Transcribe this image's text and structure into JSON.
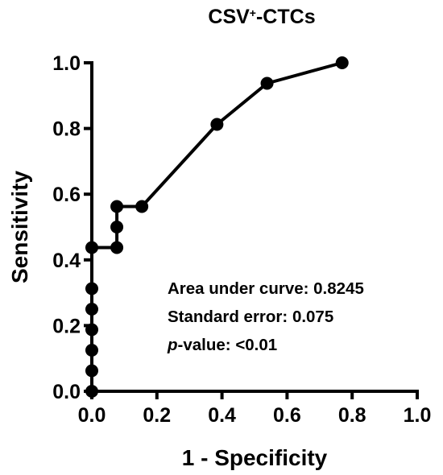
{
  "chart_data": {
    "type": "line",
    "title": "CSV",
    "title_superscript": "+",
    "title_suffix": "-CTCs",
    "xlabel": "1 - Specificity",
    "ylabel": "Sensitivity",
    "xlim": [
      0,
      1
    ],
    "ylim": [
      0,
      1
    ],
    "x_ticks": [
      "0.0",
      "0.2",
      "0.4",
      "0.6",
      "0.8",
      "1.0"
    ],
    "y_ticks": [
      "0.0",
      "0.2",
      "0.4",
      "0.6",
      "0.8",
      "1.0"
    ],
    "grid": false,
    "legend": "none",
    "series": [
      {
        "x": [
          0,
          0,
          0,
          0,
          0,
          0,
          0,
          0.0769,
          0.0769,
          0.0769,
          0.1538,
          0.3846,
          0.5385,
          0.7692
        ],
        "y": [
          0,
          0.0625,
          0.125,
          0.1875,
          0.25,
          0.3125,
          0.4375,
          0.4375,
          0.5,
          0.5625,
          0.5625,
          0.8125,
          0.9375,
          1.0
        ],
        "color": "#000000",
        "markers": "filled-circle"
      }
    ],
    "annotations": [
      {
        "label": "Area under curve:",
        "value": "0.8245"
      },
      {
        "label": "Standard error:",
        "value": "0.075"
      },
      {
        "label_italic": "p",
        "label": "-value:",
        "value": "<0.01"
      }
    ]
  }
}
